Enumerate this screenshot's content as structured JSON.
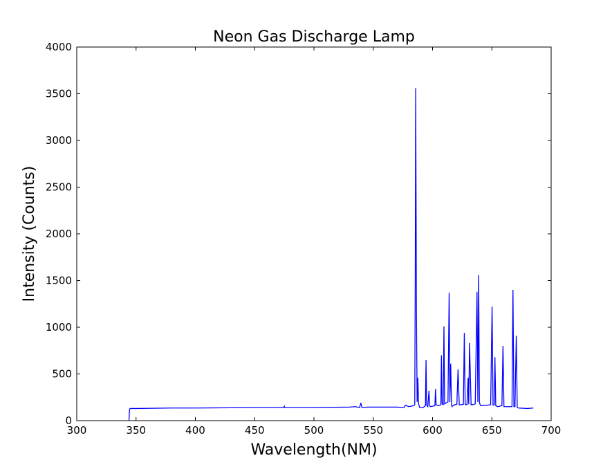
{
  "chart_data": {
    "type": "line",
    "title": "Neon Gas Discharge Lamp",
    "xlabel": "Wavelength(NM)",
    "ylabel": "Intensity (Counts)",
    "xlim": [
      300,
      700
    ],
    "ylim": [
      0,
      4000
    ],
    "xticks": [
      "300",
      "350",
      "400",
      "450",
      "500",
      "550",
      "600",
      "650",
      "700"
    ],
    "yticks": [
      "0",
      "500",
      "1000",
      "1500",
      "2000",
      "2500",
      "3000",
      "3500",
      "4000"
    ],
    "grid": false,
    "line_color": "#0000ff",
    "series": [
      {
        "x": [
          344.0,
          344.5,
          345.0,
          350,
          380,
          400,
          450,
          474.5,
          475,
          475.5,
          500,
          530,
          535,
          538.5,
          539.5,
          540.5,
          545,
          570,
          576,
          577,
          580,
          584.0,
          585.0,
          585.4,
          585.8,
          586.4,
          587.0,
          587.6,
          588.2,
          589.2,
          592.0,
          594.0,
          594.5,
          595.0,
          596.0,
          597.0,
          597.5,
          598.0,
          600.0,
          602.0,
          602.5,
          603.0,
          605.0,
          607.0,
          607.5,
          608.0,
          609.0,
          609.6,
          610.2,
          611.5,
          613.0,
          614.0,
          614.6,
          615.3,
          616.0,
          616.5,
          617.2,
          618.5,
          620.5,
          621.5,
          622.5,
          624.0,
          626.0,
          626.8,
          627.5,
          629.0,
          630.0,
          630.5,
          631.2,
          632.5,
          633.3,
          634.0,
          636.0,
          637.5,
          638.2,
          638.9,
          639.5,
          640.0,
          640.6,
          642.0,
          649.0,
          650.2,
          651.0,
          652.0,
          652.6,
          653.3,
          655.0,
          658.5,
          659.4,
          660.2,
          662.0,
          667.0,
          667.8,
          668.6,
          669.5,
          670.6,
          671.4,
          672.5,
          680.0,
          685.0
        ],
        "y": [
          0,
          120,
          130,
          130,
          135,
          135,
          140,
          140,
          155,
          140,
          140,
          145,
          150,
          140,
          190,
          140,
          145,
          145,
          140,
          165,
          150,
          160,
          170,
          1500,
          3560,
          1200,
          200,
          460,
          180,
          140,
          140,
          160,
          650,
          170,
          150,
          320,
          170,
          150,
          155,
          160,
          340,
          170,
          160,
          170,
          700,
          180,
          170,
          1010,
          180,
          190,
          200,
          1370,
          200,
          610,
          170,
          150,
          160,
          170,
          175,
          550,
          170,
          170,
          175,
          940,
          175,
          170,
          460,
          175,
          830,
          170,
          175,
          170,
          180,
          1380,
          200,
          1560,
          200,
          175,
          160,
          160,
          170,
          1220,
          165,
          170,
          680,
          160,
          150,
          160,
          800,
          150,
          150,
          150,
          1400,
          150,
          150,
          910,
          140,
          135,
          130,
          135
        ]
      }
    ]
  }
}
